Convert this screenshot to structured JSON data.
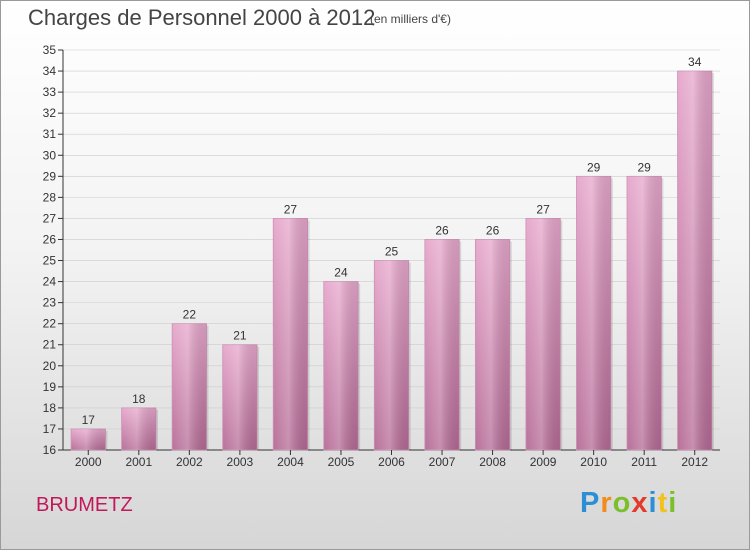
{
  "title": "Charges de Personnel 2000 à 2012",
  "subtitle": "(en milliers d'€)",
  "commune": "BRUMETZ",
  "logo": {
    "letters": [
      {
        "ch": "P",
        "color": "#2c8fd6"
      },
      {
        "ch": "r",
        "color": "#f28c1a"
      },
      {
        "ch": "o",
        "color": "#7cbf2a"
      },
      {
        "ch": "x",
        "color": "#e33a2b"
      },
      {
        "ch": "i",
        "color": "#2c8fd6"
      },
      {
        "ch": "t",
        "color": "#f2c218"
      },
      {
        "ch": "i",
        "color": "#7cbf2a"
      }
    ]
  },
  "colors": {
    "bar_top": "#e6a6cb",
    "bar_bottom": "#b56a95",
    "axis": "#333333",
    "grid": "#cccccc",
    "commune": "#c2185b"
  },
  "chart_data": {
    "type": "bar",
    "categories": [
      "2000",
      "2001",
      "2002",
      "2003",
      "2004",
      "2005",
      "2006",
      "2007",
      "2008",
      "2009",
      "2010",
      "2011",
      "2012"
    ],
    "values": [
      17,
      18,
      22,
      21,
      27,
      24,
      25,
      26,
      26,
      27,
      29,
      29,
      34
    ],
    "ylim": [
      16,
      35
    ],
    "yticks": [
      16,
      17,
      18,
      19,
      20,
      21,
      22,
      23,
      24,
      25,
      26,
      27,
      28,
      29,
      30,
      31,
      32,
      33,
      34,
      35
    ],
    "grid": true
  }
}
